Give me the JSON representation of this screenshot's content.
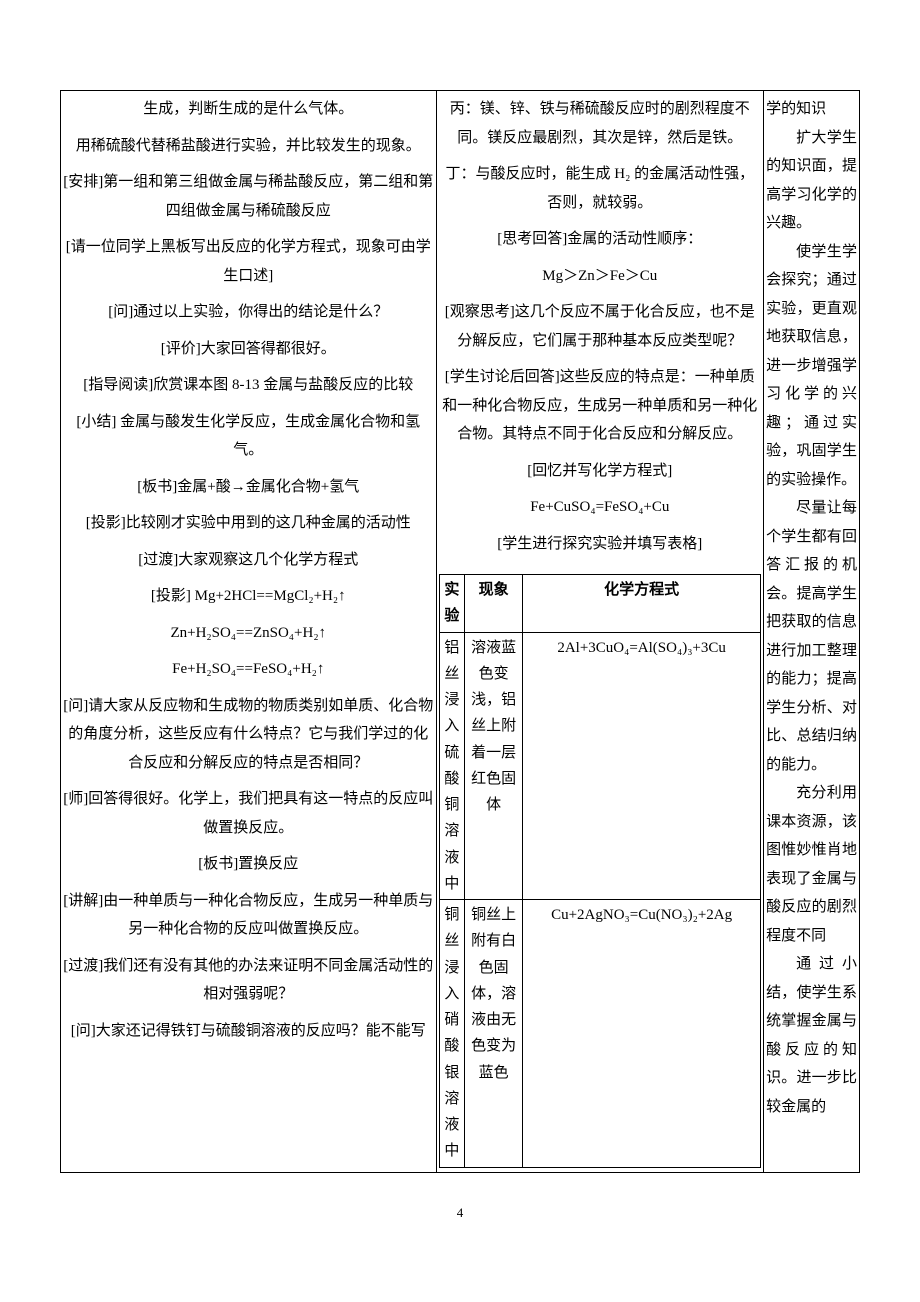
{
  "left": {
    "p01": "生成，判断生成的是什么气体。",
    "p02": "用稀硫酸代替稀盐酸进行实验，并比较发生的现象。",
    "p03": "[安排]第一组和第三组做金属与稀盐酸反应，第二组和第四组做金属与稀硫酸反应",
    "p04": "[请一位同学上黑板写出反应的化学方程式，现象可由学生口述]",
    "p05": "[问]通过以上实验，你得出的结论是什么？",
    "p06": "[评价]大家回答得都很好。",
    "p07": "[指导阅读]欣赏课本图 8-13 金属与盐酸反应的比较",
    "p08": "[小结] 金属与酸发生化学反应，生成金属化合物和氢气。",
    "p09": "[板书]金属+酸→金属化合物+氢气",
    "p10": "[投影]比较刚才实验中用到的这几种金属的活动性",
    "p11": "[过渡]大家观察这几个化学方程式",
    "p12": "[投影] Mg+2HCl==MgCl₂+H₂↑",
    "p13": "Zn+H₂SO₄==ZnSO₄+H₂↑",
    "p14": "Fe+H₂SO₄==FeSO₄+H₂↑",
    "p15": "[问]请大家从反应物和生成物的物质类别如单质、化合物的角度分析，这些反应有什么特点？它与我们学过的化合反应和分解反应的特点是否相同？",
    "p16": "[师]回答得很好。化学上，我们把具有这一特点的反应叫做置换反应。",
    "p17": "[板书]置换反应",
    "p18": "[讲解]由一种单质与一种化合物反应，生成另一种单质与另一种化合物的反应叫做置换反应。",
    "p19": "[过渡]我们还有没有其他的办法来证明不同金属活动性的相对强弱呢？",
    "p20": "[问]大家还记得铁钉与硫酸铜溶液的反应吗？能不能写"
  },
  "mid": {
    "p01": "丙：镁、锌、铁与稀硫酸反应时的剧烈程度不同。镁反应最剧烈，其次是锌，然后是铁。",
    "p02": "丁：与酸反应时，能生成 H₂ 的金属活动性强，否则，就较弱。",
    "p03": "[思考回答]金属的活动性顺序：",
    "p04": "Mg＞Zn＞Fe＞Cu",
    "p05": "[观察思考]这几个反应不属于化合反应，也不是分解反应，它们属于那种基本反应类型呢？",
    "p06": "[学生讨论后回答]这些反应的特点是：一种单质和一种化合物反应，生成另一种单质和另一种化合物。其特点不同于化合反应和分解反应。",
    "p07": "[回忆并写化学方程式]",
    "p08": "Fe+CuSO₄=FeSO₄+Cu",
    "p09": "[学生进行探究实验并填写表格]"
  },
  "inner_table": {
    "headers": [
      "实验",
      "现象",
      "化学方程式"
    ],
    "rows": [
      {
        "c0": "铝丝浸入硫酸铜溶液中",
        "c1": "溶液蓝色变浅，铝丝上附着一层红色固体",
        "c2": "2Al+3CuO₄=Al(SO₄)₃+3Cu"
      },
      {
        "c0": "铜丝浸入硝酸银溶液中",
        "c1": "铜丝上附有白色固体，溶液由无色变为蓝色",
        "c2": "Cu+2AgNO₃=Cu(NO₃)₂+2Ag"
      }
    ]
  },
  "right": {
    "p01": "学的知识",
    "p02": "扩大学生的知识面，提高学习化学的兴趣。",
    "p03": "使学生学会探究；通过实验，更直观地获取信息，进一步增强学习化学的兴趣；通过实验，巩固学生的实验操作。",
    "p04": "尽量让每个学生都有回答汇报的机会。提高学生把获取的信息进行加工整理的能力；提高学生分析、对比、总结归纳的能力。",
    "p05": "充分利用课本资源，该图惟妙惟肖地表现了金属与酸反应的剧烈程度不同",
    "p06": "通过小结，使学生系统掌握金属与酸反应的知识。进一步比较金属的"
  },
  "page_number": "4"
}
